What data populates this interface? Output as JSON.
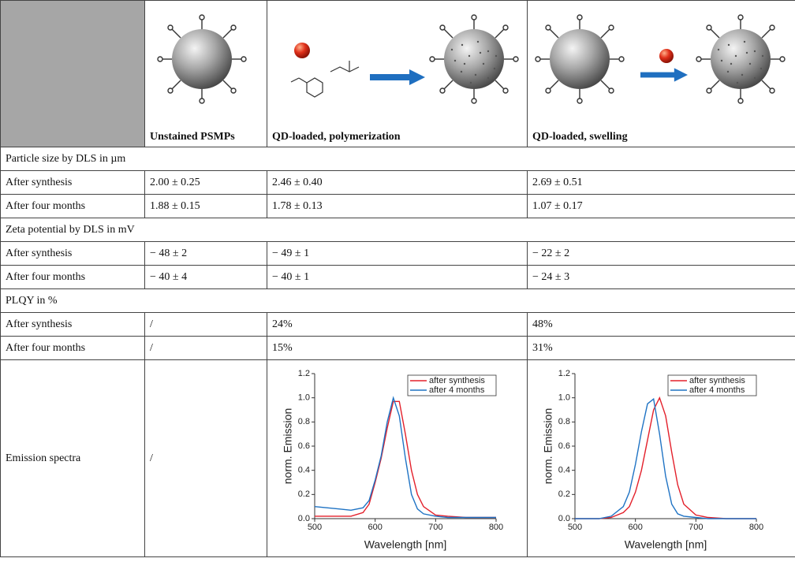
{
  "header": {
    "columns": [
      "Unstained PSMPs",
      "QD-loaded, polymerization",
      "QD-loaded, swelling"
    ]
  },
  "sections": [
    {
      "title": "Particle size by DLS in µm",
      "rows": [
        [
          "After synthesis",
          "2.00 ± 0.25",
          "2.46 ± 0.40",
          "2.69 ± 0.51"
        ],
        [
          "After four months",
          "1.88 ± 0.15",
          "1.78 ± 0.13",
          "1.07 ± 0.17"
        ]
      ]
    },
    {
      "title": "Zeta potential by DLS in mV",
      "rows": [
        [
          "After synthesis",
          "− 48 ± 2",
          "− 49 ± 1",
          "− 22 ± 2"
        ],
        [
          "After four months",
          "− 40 ± 4",
          "− 40 ± 1",
          "− 24 ± 3"
        ]
      ]
    },
    {
      "title": "PLQY in %",
      "rows": [
        [
          "After synthesis",
          "/",
          "24%",
          "48%"
        ],
        [
          "After four months",
          "/",
          "15%",
          "31%"
        ]
      ]
    }
  ],
  "emission": {
    "label": "Emission spectra",
    "unstained": "/"
  },
  "chart_data": [
    {
      "type": "line",
      "xlabel": "Wavelength [nm]",
      "ylabel": "norm. Emission",
      "x": [
        500,
        520,
        540,
        560,
        580,
        590,
        600,
        610,
        620,
        630,
        640,
        650,
        660,
        670,
        680,
        700,
        720,
        750,
        800
      ],
      "xlim": [
        500,
        800
      ],
      "xticks": [
        500,
        600,
        700,
        800
      ],
      "ylim": [
        0,
        1.2
      ],
      "yticks": [
        {
          "value": 0,
          "label": "0.0"
        },
        0.2,
        0.4,
        0.6,
        0.8,
        {
          "value": 1,
          "label": "1.0"
        },
        1.2
      ],
      "legend": "upper right",
      "series": [
        {
          "name": "after synthesis",
          "color": "#e3202b",
          "values": [
            0.02,
            0.02,
            0.02,
            0.02,
            0.05,
            0.12,
            0.3,
            0.5,
            0.75,
            0.97,
            0.97,
            0.7,
            0.4,
            0.2,
            0.1,
            0.03,
            0.02,
            0.01,
            0.01
          ]
        },
        {
          "name": "after 4 months",
          "color": "#1f73c4",
          "values": [
            0.1,
            0.09,
            0.08,
            0.07,
            0.09,
            0.15,
            0.32,
            0.52,
            0.8,
            1.0,
            0.85,
            0.5,
            0.2,
            0.08,
            0.04,
            0.02,
            0.01,
            0.01,
            0.01
          ]
        }
      ]
    },
    {
      "type": "line",
      "xlabel": "Wavelength [nm]",
      "ylabel": "norm. Emission",
      "x": [
        500,
        520,
        540,
        560,
        580,
        590,
        600,
        610,
        620,
        630,
        640,
        650,
        660,
        670,
        680,
        700,
        720,
        750,
        800
      ],
      "xlim": [
        500,
        800
      ],
      "xticks": [
        500,
        600,
        700,
        800
      ],
      "ylim": [
        0,
        1.2
      ],
      "yticks": [
        {
          "value": 0,
          "label": "0.0"
        },
        0.2,
        0.4,
        0.6,
        0.8,
        {
          "value": 1,
          "label": "1.0"
        },
        1.2
      ],
      "legend": "upper right",
      "series": [
        {
          "name": "after synthesis",
          "color": "#e3202b",
          "values": [
            0,
            0,
            0,
            0.01,
            0.05,
            0.1,
            0.22,
            0.4,
            0.65,
            0.9,
            1.0,
            0.85,
            0.55,
            0.28,
            0.12,
            0.03,
            0.01,
            0,
            0
          ]
        },
        {
          "name": "after 4 months",
          "color": "#1f73c4",
          "values": [
            0,
            0,
            0,
            0.02,
            0.1,
            0.22,
            0.45,
            0.72,
            0.95,
            0.99,
            0.7,
            0.35,
            0.12,
            0.04,
            0.02,
            0.01,
            0,
            0,
            0
          ]
        }
      ]
    }
  ]
}
